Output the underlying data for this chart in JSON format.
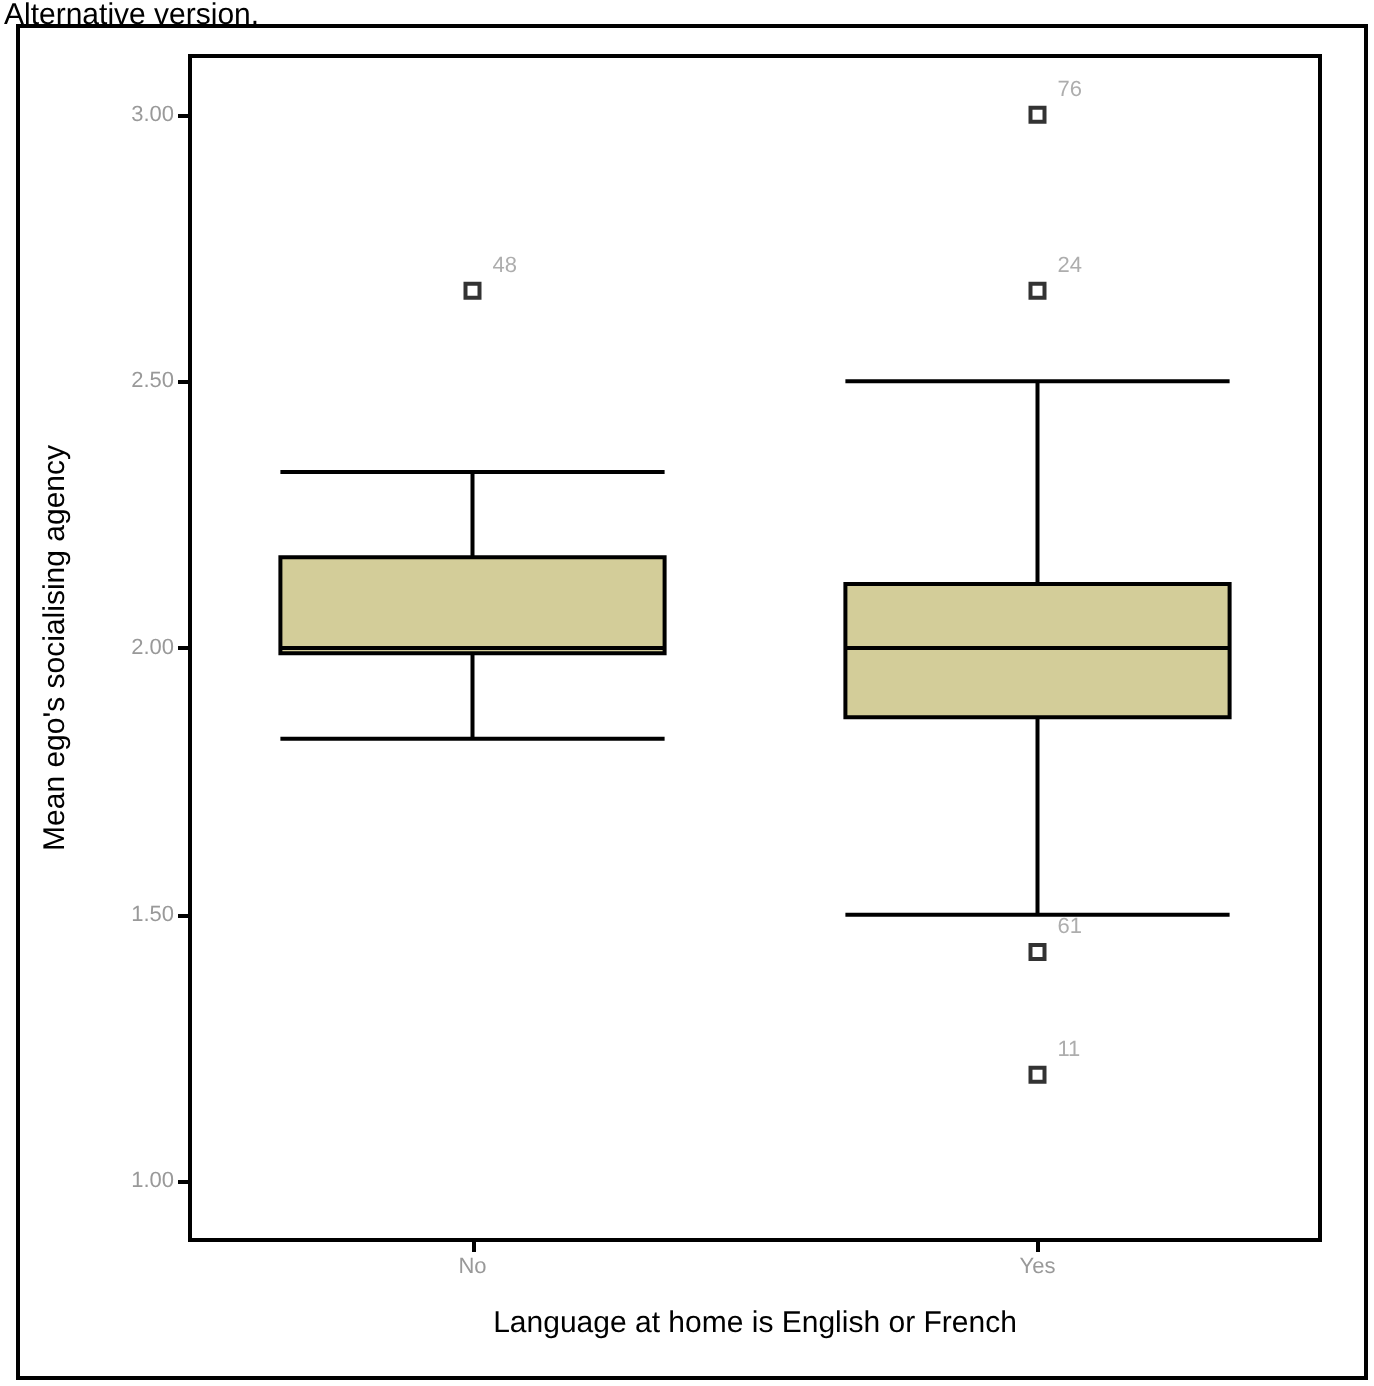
{
  "chart_data": {
    "type": "box",
    "title": "Alternative version.",
    "xlabel": "Language at home is English or French",
    "ylabel": "Mean ego's socialising agency",
    "categories": [
      "No",
      "Yes"
    ],
    "color": "#d3cd99",
    "boxes": [
      {
        "low": 1.83,
        "q1": 1.99,
        "median": 2.0,
        "q3": 2.17,
        "high": 2.33,
        "outliers": [
          2.67
        ]
      },
      {
        "low": 1.5,
        "q1": 1.87,
        "median": 2.0,
        "q3": 2.12,
        "high": 2.5,
        "outliers": [
          3.0,
          2.67,
          1.43,
          1.2
        ]
      }
    ],
    "ylim": [
      0.89,
      3.11
    ],
    "yticks": [
      {
        "value": 1,
        "label": "1.00"
      },
      {
        "value": 1.5,
        "label": "1.50"
      },
      {
        "value": 2,
        "label": "2.00"
      },
      {
        "value": 2.5,
        "label": "2.50"
      },
      {
        "value": 3,
        "label": "3.00"
      }
    ],
    "annotations": [
      "48",
      "76",
      "24",
      "61",
      "11"
    ],
    "grid": false
  }
}
